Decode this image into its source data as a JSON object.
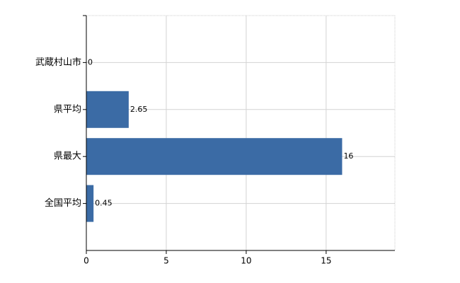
{
  "chart_data": {
    "type": "bar",
    "orientation": "horizontal",
    "categories": [
      "武蔵村山市",
      "県平均",
      "県最大",
      "全国平均"
    ],
    "values": [
      0,
      2.65,
      16,
      0.45
    ],
    "color": "#3b6ba5",
    "xlim": [
      0,
      19.3
    ],
    "xticks": [
      0,
      5,
      10,
      15
    ],
    "grid": true
  }
}
